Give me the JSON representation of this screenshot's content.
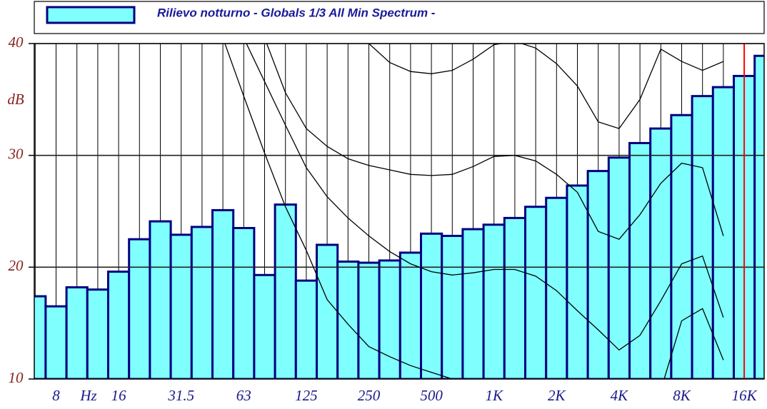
{
  "chart_data": {
    "type": "bar",
    "title": "Rilievo notturno - Globals 1/3 All Min Spectrum -",
    "y_unit": "dB",
    "x_unit": "Hz",
    "categories": [
      null,
      "8",
      null,
      null,
      "16",
      null,
      null,
      "31.5",
      null,
      null,
      "63",
      null,
      null,
      "125",
      null,
      null,
      "250",
      null,
      null,
      "500",
      null,
      null,
      "1K",
      null,
      null,
      "2K",
      null,
      null,
      "4K",
      null,
      null,
      "8K",
      null,
      null,
      "16K",
      null
    ],
    "series": [
      {
        "name": "Rilievo notturno - Globals 1/3 All Min Spectrum -",
        "color": "#80ffff",
        "edge_color": "#000080",
        "values": [
          17.4,
          16.5,
          18.2,
          18.0,
          19.6,
          22.5,
          24.1,
          22.9,
          23.6,
          25.1,
          23.5,
          19.3,
          25.6,
          18.8,
          22.0,
          20.5,
          20.4,
          20.6,
          21.3,
          23.0,
          22.8,
          23.4,
          23.8,
          24.4,
          25.4,
          26.2,
          27.3,
          28.6,
          29.8,
          31.1,
          32.4,
          33.6,
          35.3,
          36.1,
          37.1,
          38.9
        ]
      }
    ],
    "reference_curves": [
      {
        "values": [
          null,
          null,
          null,
          null,
          null,
          null,
          null,
          null,
          null,
          null,
          null,
          null,
          null,
          null,
          null,
          41.5,
          40.0,
          38.3,
          37.5,
          37.3,
          37.6,
          38.6,
          39.9,
          40.2,
          39.6,
          38.2,
          36.2,
          33.0,
          32.4,
          35.0,
          39.5,
          38.4,
          37.6,
          38.4,
          null,
          null
        ]
      },
      {
        "values": [
          null,
          null,
          null,
          null,
          null,
          null,
          null,
          null,
          null,
          null,
          null,
          40.5,
          35.6,
          32.4,
          30.8,
          29.7,
          29.1,
          28.7,
          28.3,
          28.2,
          28.3,
          29.0,
          29.9,
          30.0,
          29.5,
          28.3,
          26.7,
          23.2,
          22.5,
          24.7,
          27.5,
          29.3,
          28.9,
          22.8,
          null,
          null
        ]
      },
      {
        "values": [
          null,
          null,
          null,
          null,
          null,
          null,
          null,
          null,
          null,
          null,
          40.5,
          36.6,
          32.7,
          28.9,
          26.3,
          24.4,
          22.8,
          21.4,
          20.3,
          19.6,
          19.3,
          19.5,
          19.8,
          19.8,
          19.2,
          17.9,
          16.1,
          14.4,
          12.6,
          13.9,
          17.0,
          20.3,
          21.0,
          15.5,
          null,
          null
        ]
      },
      {
        "values": [
          null,
          null,
          null,
          null,
          null,
          null,
          null,
          null,
          null,
          40.5,
          35.3,
          30.2,
          25.4,
          21.5,
          17.1,
          14.9,
          12.9,
          12.0,
          11.2,
          10.6,
          10.0,
          9.7,
          null,
          null,
          null,
          null,
          null,
          null,
          null,
          null,
          9.0,
          15.2,
          16.3,
          11.7,
          null,
          null
        ]
      }
    ],
    "curve_color": "#000000",
    "highlight_category": "16K",
    "highlight_color": "#ff0000",
    "ylim": [
      10,
      40
    ],
    "yticks": [
      10,
      20,
      30,
      40
    ],
    "grid": true
  }
}
